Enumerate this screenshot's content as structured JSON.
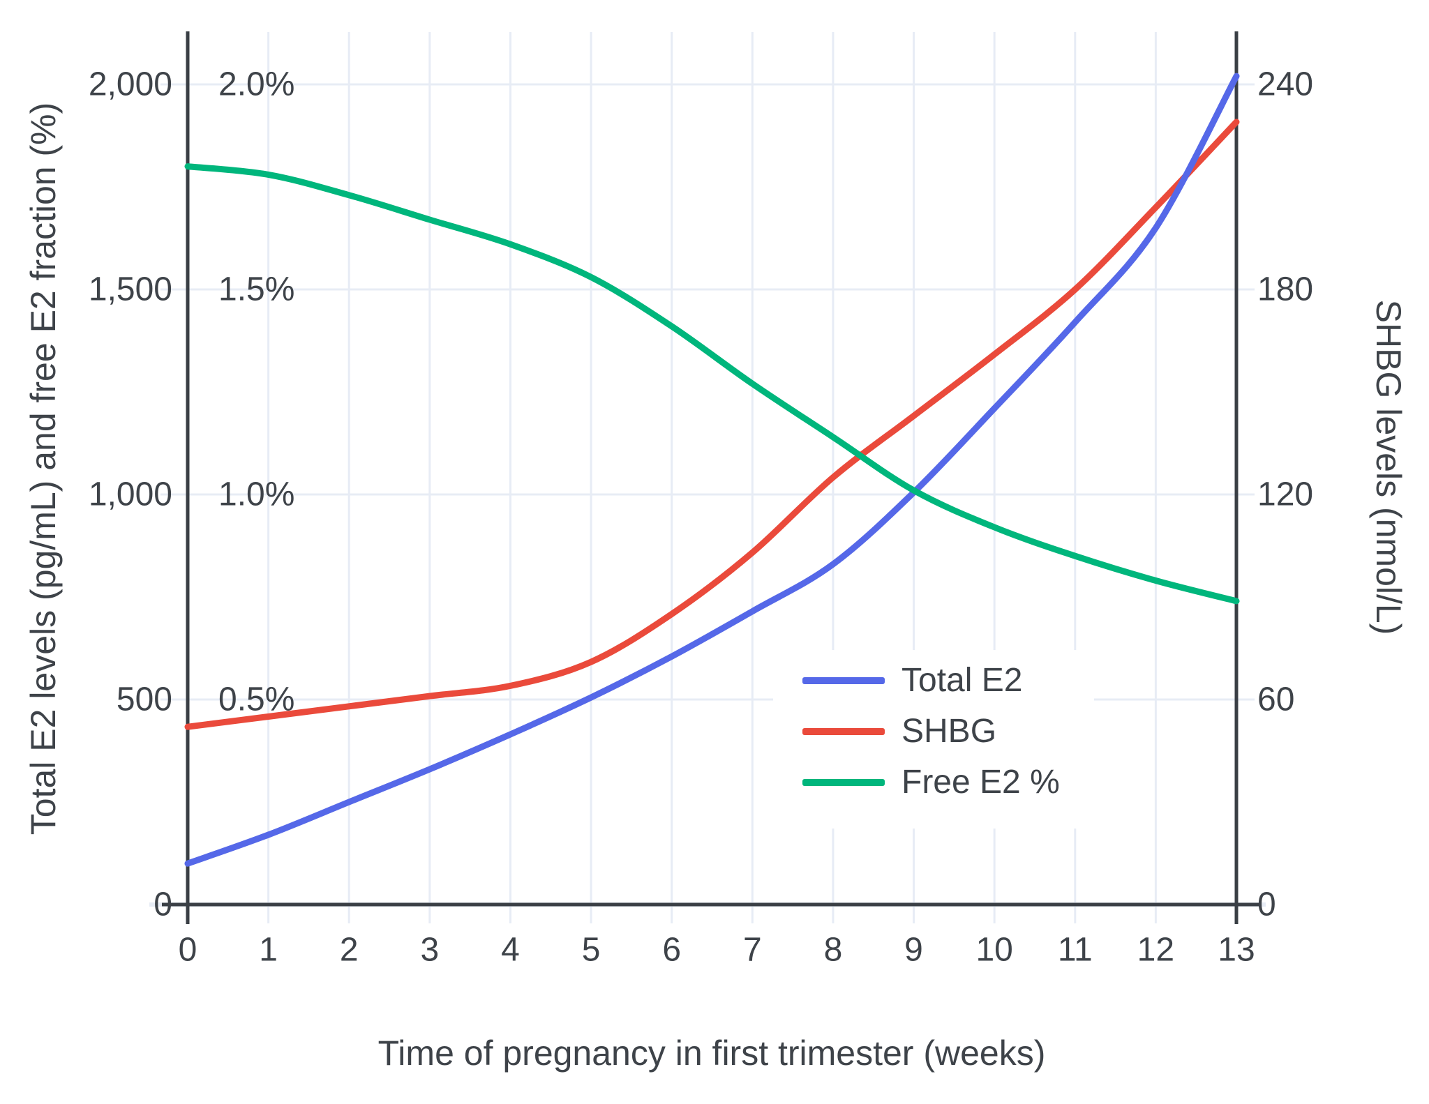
{
  "colors": {
    "background": "#ffffff",
    "gridline": "#e7ecf5",
    "axis": "#3a3f45",
    "text": "#3e4349",
    "total_e2_line": "#5568e8",
    "shbg_line": "#ea4a3b",
    "free_e2_line": "#00b67c"
  },
  "chart_data": {
    "type": "line",
    "title": "",
    "xlabel": "Time of pregnancy in first trimester (weeks)",
    "ylabel_left": "Total E2 levels (pg/mL) and free E2 fraction (%)",
    "ylabel_right": "SHBG levels (nmol/L)",
    "x": [
      0,
      1,
      2,
      3,
      4,
      5,
      6,
      7,
      8,
      9,
      10,
      11,
      12,
      13
    ],
    "x_ticks": [
      "0",
      "1",
      "2",
      "3",
      "4",
      "5",
      "6",
      "7",
      "8",
      "9",
      "10",
      "11",
      "12",
      "13"
    ],
    "xlim": [
      0,
      13
    ],
    "left_axis_tick_labels": [
      "0",
      "500",
      "1,000",
      "1,500",
      "2,000"
    ],
    "left_axis_tick_values": [
      0,
      500,
      1000,
      1500,
      2000
    ],
    "percent_tick_labels": [
      "0.5%",
      "1.0%",
      "1.5%",
      "2.0%"
    ],
    "percent_tick_values": [
      0.5,
      1.0,
      1.5,
      2.0
    ],
    "right_axis_tick_labels": [
      "0",
      "60",
      "120",
      "180",
      "240"
    ],
    "right_axis_tick_values": [
      0,
      60,
      120,
      180,
      240
    ],
    "ylim_left": [
      0,
      2150
    ],
    "ylim_right": [
      0,
      258
    ],
    "grid": true,
    "legend_position": "inside-right-middle",
    "series": [
      {
        "name": "Total E2",
        "axis": "left",
        "units": "pg/mL",
        "color": "#5568e8",
        "values": [
          100,
          170,
          250,
          330,
          415,
          505,
          605,
          715,
          830,
          1005,
          1210,
          1420,
          1650,
          2020
        ]
      },
      {
        "name": "SHBG",
        "axis": "right",
        "units": "nmol/L",
        "color": "#ea4a3b",
        "values": [
          52,
          55,
          58,
          61,
          64,
          71,
          85,
          103,
          125,
          143,
          161,
          180,
          204,
          229
        ]
      },
      {
        "name": "Free E2 %",
        "axis": "left-percent",
        "units": "%",
        "color": "#00b67c",
        "values": [
          1.8,
          1.78,
          1.73,
          1.67,
          1.61,
          1.53,
          1.41,
          1.27,
          1.14,
          1.01,
          0.92,
          0.85,
          0.79,
          0.74
        ]
      }
    ]
  }
}
